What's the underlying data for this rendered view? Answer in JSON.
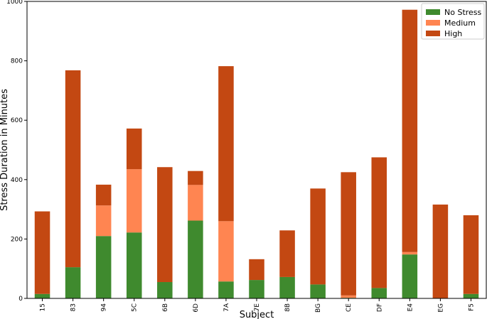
{
  "chart_data": {
    "type": "bar",
    "stacked": true,
    "title": "",
    "xlabel": "Subject",
    "ylabel": "Stress Duration in Minutes",
    "categories": [
      "15",
      "83",
      "94",
      "5C",
      "6B",
      "6D",
      "7A",
      "7E",
      "8B",
      "BG",
      "CE",
      "DF",
      "E4",
      "EG",
      "F5"
    ],
    "ylim": [
      0,
      1000
    ],
    "yticks": [
      0,
      200,
      400,
      600,
      800,
      1000
    ],
    "series": [
      {
        "name": "No Stress",
        "color": "#3f8a2e",
        "values": [
          15,
          105,
          210,
          222,
          55,
          262,
          57,
          62,
          72,
          47,
          2,
          35,
          148,
          0,
          15
        ]
      },
      {
        "name": "Medium",
        "color": "#ff8551",
        "values": [
          0,
          0,
          103,
          213,
          0,
          120,
          203,
          0,
          0,
          0,
          8,
          0,
          8,
          0,
          0
        ]
      },
      {
        "name": "High",
        "color": "#c34812",
        "values": [
          278,
          663,
          70,
          137,
          387,
          47,
          522,
          70,
          157,
          323,
          415,
          440,
          816,
          316,
          265
        ]
      }
    ],
    "legend_position": "top-right",
    "grid": false
  }
}
